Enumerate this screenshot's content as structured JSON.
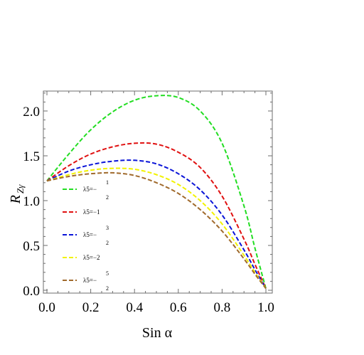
{
  "chart_data": {
    "type": "line",
    "xlabel": "Sin α",
    "ylabel_main": "R",
    "ylabel_sub": "Zγ",
    "xlim": [
      0,
      1
    ],
    "ylim": [
      0,
      2.2
    ],
    "x_ticks": [
      0.0,
      0.2,
      0.4,
      0.6,
      0.8,
      1.0
    ],
    "x_tick_labels": [
      "0.0",
      "0.2",
      "0.4",
      "0.6",
      "0.8",
      "1.0"
    ],
    "y_ticks": [
      0.0,
      0.5,
      1.0,
      1.5,
      2.0
    ],
    "y_tick_labels": [
      "0.0",
      "0.5",
      "1.0",
      "1.5",
      "2.0"
    ],
    "grid": false,
    "legend_position": "left",
    "x": [
      0.0,
      0.1,
      0.2,
      0.3,
      0.4,
      0.5,
      0.6,
      0.7,
      0.8,
      0.9,
      0.95,
      1.0
    ],
    "series": [
      {
        "name": "λ5=−1/2",
        "legend_prefix": "λ5=−",
        "legend_num": "1",
        "legend_den": "2",
        "color": "#22dd22",
        "values": [
          1.22,
          1.52,
          1.79,
          1.99,
          2.12,
          2.17,
          2.15,
          2.0,
          1.64,
          0.94,
          0.47,
          0.02
        ]
      },
      {
        "name": "λ5=−1",
        "legend_prefix": "λ5=−1",
        "legend_num": "",
        "legend_den": "",
        "color": "#e01010",
        "values": [
          1.22,
          1.39,
          1.52,
          1.6,
          1.64,
          1.63,
          1.54,
          1.37,
          1.05,
          0.57,
          0.29,
          0.02
        ]
      },
      {
        "name": "λ5=−3/2",
        "legend_prefix": "λ5=−",
        "legend_num": "3",
        "legend_den": "2",
        "color": "#0a14d8",
        "values": [
          1.22,
          1.33,
          1.4,
          1.44,
          1.45,
          1.41,
          1.3,
          1.12,
          0.84,
          0.45,
          0.23,
          0.02
        ]
      },
      {
        "name": "λ5=−2",
        "legend_prefix": "λ5=−2",
        "legend_num": "",
        "legend_den": "",
        "color": "#f2f200",
        "values": [
          1.22,
          1.29,
          1.34,
          1.36,
          1.35,
          1.29,
          1.18,
          1.0,
          0.74,
          0.39,
          0.2,
          0.02
        ]
      },
      {
        "name": "λ5=−5/2",
        "legend_prefix": "λ5=−",
        "legend_num": "5",
        "legend_den": "2",
        "color": "#a06a2c",
        "values": [
          1.22,
          1.27,
          1.3,
          1.31,
          1.28,
          1.2,
          1.08,
          0.9,
          0.66,
          0.35,
          0.18,
          0.02
        ]
      }
    ]
  }
}
